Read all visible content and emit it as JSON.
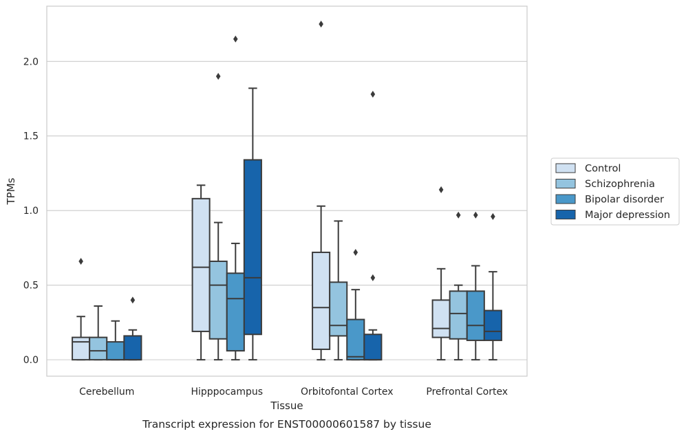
{
  "chart_data": {
    "type": "box",
    "caption": "Transcript expression for ENST00000601587 by tissue",
    "xlabel": "Tissue",
    "ylabel": "TPMs",
    "ylim": [
      -0.11,
      2.37
    ],
    "yticks": [
      0.0,
      0.5,
      1.0,
      1.5,
      2.0
    ],
    "ytick_labels": [
      "0.0",
      "0.5",
      "1.0",
      "1.5",
      "2.0"
    ],
    "grid": "horizontal",
    "legend_position": "right",
    "categories": [
      "Cerebellum",
      "Hipppocampus",
      "Orbitofontal Cortex",
      "Prefrontal Cortex"
    ],
    "series": [
      {
        "name": "Control",
        "color": "#d0e1f2",
        "boxes": [
          {
            "whislo": 0.0,
            "q1": 0.0,
            "med": 0.12,
            "q3": 0.15,
            "whishi": 0.29,
            "fliers": [
              0.66
            ]
          },
          {
            "whislo": 0.0,
            "q1": 0.19,
            "med": 0.62,
            "q3": 1.08,
            "whishi": 1.17,
            "fliers": []
          },
          {
            "whislo": 0.0,
            "q1": 0.07,
            "med": 0.35,
            "q3": 0.72,
            "whishi": 1.03,
            "fliers": [
              2.25
            ]
          },
          {
            "whislo": 0.0,
            "q1": 0.15,
            "med": 0.21,
            "q3": 0.4,
            "whishi": 0.61,
            "fliers": [
              1.14
            ]
          }
        ]
      },
      {
        "name": "Schizophrenia",
        "color": "#94c4df",
        "boxes": [
          {
            "whislo": 0.0,
            "q1": 0.0,
            "med": 0.06,
            "q3": 0.15,
            "whishi": 0.36,
            "fliers": []
          },
          {
            "whislo": 0.0,
            "q1": 0.14,
            "med": 0.5,
            "q3": 0.66,
            "whishi": 0.92,
            "fliers": [
              1.9
            ]
          },
          {
            "whislo": 0.0,
            "q1": 0.16,
            "med": 0.23,
            "q3": 0.52,
            "whishi": 0.93,
            "fliers": []
          },
          {
            "whislo": 0.0,
            "q1": 0.14,
            "med": 0.31,
            "q3": 0.46,
            "whishi": 0.5,
            "fliers": [
              0.97
            ]
          }
        ]
      },
      {
        "name": "Bipolar disorder",
        "color": "#4a98c9",
        "boxes": [
          {
            "whislo": 0.0,
            "q1": 0.0,
            "med": 0.0,
            "q3": 0.12,
            "whishi": 0.26,
            "fliers": []
          },
          {
            "whislo": 0.0,
            "q1": 0.06,
            "med": 0.41,
            "q3": 0.58,
            "whishi": 0.78,
            "fliers": [
              2.15
            ]
          },
          {
            "whislo": 0.0,
            "q1": 0.0,
            "med": 0.02,
            "q3": 0.27,
            "whishi": 0.47,
            "fliers": [
              0.72
            ]
          },
          {
            "whislo": 0.0,
            "q1": 0.13,
            "med": 0.23,
            "q3": 0.46,
            "whishi": 0.63,
            "fliers": [
              0.97
            ]
          }
        ]
      },
      {
        "name": "Major depression",
        "color": "#1764ab",
        "boxes": [
          {
            "whislo": 0.0,
            "q1": 0.0,
            "med": 0.0,
            "q3": 0.16,
            "whishi": 0.2,
            "fliers": [
              0.4
            ]
          },
          {
            "whislo": 0.0,
            "q1": 0.17,
            "med": 0.55,
            "q3": 1.34,
            "whishi": 1.82,
            "fliers": []
          },
          {
            "whislo": 0.0,
            "q1": 0.0,
            "med": 0.0,
            "q3": 0.17,
            "whishi": 0.2,
            "fliers": [
              0.55,
              1.78
            ]
          },
          {
            "whislo": 0.0,
            "q1": 0.13,
            "med": 0.19,
            "q3": 0.33,
            "whishi": 0.59,
            "fliers": [
              0.96
            ]
          }
        ]
      }
    ]
  }
}
